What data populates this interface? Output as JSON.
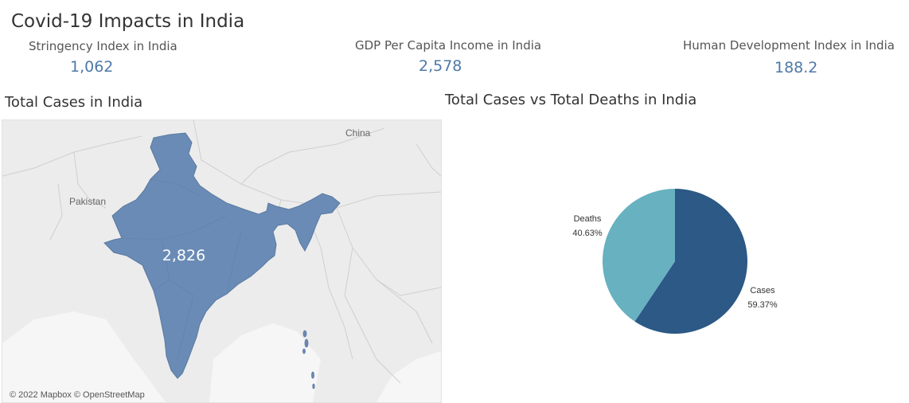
{
  "dashboard": {
    "title": "Covid-19 Impacts in India"
  },
  "kpis": [
    {
      "label": "Stringency Index in India",
      "value": "1,062"
    },
    {
      "label": "GDP Per Capita Income in India",
      "value": "2,578"
    },
    {
      "label": "Human Development Index in India",
      "value": "188.2"
    }
  ],
  "map": {
    "title": "Total Cases in India",
    "value_label": "2,826",
    "country_labels": {
      "china": "China",
      "pakistan": "Pakistan"
    },
    "attribution": "© 2022 Mapbox © OpenStreetMap",
    "fill_color": "#6a8bb5",
    "background_color": "#eeeeee"
  },
  "pie": {
    "title": "Total Cases vs Total Deaths in India",
    "slices": [
      {
        "name": "Cases",
        "percent_label": "59.37%",
        "value": 59.37,
        "color": "#2c5985"
      },
      {
        "name": "Deaths",
        "percent_label": "40.63%",
        "value": 40.63,
        "color": "#67b1c0"
      }
    ]
  },
  "chart_data": {
    "type": "pie",
    "title": "Total Cases vs Total Deaths in India",
    "categories": [
      "Cases",
      "Deaths"
    ],
    "values": [
      59.37,
      40.63
    ]
  }
}
